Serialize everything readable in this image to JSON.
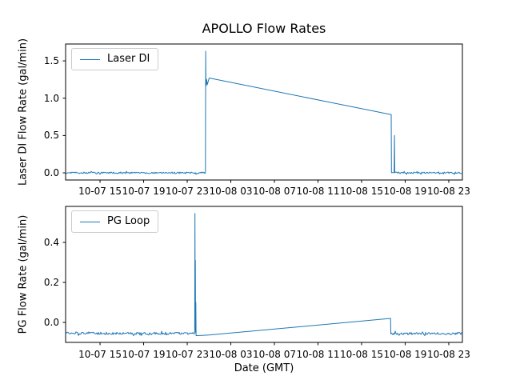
{
  "figure": {
    "title": "APOLLO Flow Rates",
    "xlabel": "Date (GMT)",
    "line_color": "#1f77b4",
    "background": "#ffffff"
  },
  "chart_data": [
    {
      "type": "line",
      "title": "APOLLO Flow Rates",
      "ylabel": "Laser DI Flow Rate (gal/min)",
      "ylim": [
        -0.096,
        1.726
      ],
      "yticks": [
        0.0,
        0.5,
        1.0,
        1.5
      ],
      "ytick_labels": [
        "0.0",
        "0.5",
        "1.0",
        "1.5"
      ],
      "x_units": "hours since 10-07 00:00 GMT",
      "xlim": [
        11.84,
        48.25
      ],
      "xticks": [
        15,
        19,
        23,
        27,
        31,
        35,
        39,
        43,
        47
      ],
      "xtick_labels": [
        "10-07 15",
        "10-07 19",
        "10-07 23",
        "10-08 03",
        "10-08 07",
        "10-08 11",
        "10-08 15",
        "10-08 19",
        "10-08 23"
      ],
      "grid": false,
      "legend": {
        "position": "upper left",
        "entries": [
          "Laser DI"
        ]
      },
      "series": [
        {
          "name": "Laser DI",
          "color": "#1f77b4",
          "segments": [
            {
              "type": "noise",
              "x0": 11.84,
              "x1": 24.64,
              "base": 0.0,
              "amp": 0.011
            },
            {
              "type": "points",
              "pts": [
                [
                  24.67,
                  0.004
                ],
                [
                  24.69,
                  1.63
                ],
                [
                  24.71,
                  1.28
                ],
                [
                  24.74,
                  1.17
                ],
                [
                  24.78,
                  1.25
                ],
                [
                  24.84,
                  1.18
                ],
                [
                  25.02,
                  1.27
                ],
                [
                  41.72,
                  0.78
                ],
                [
                  41.74,
                  0.004
                ],
                [
                  41.99,
                  0.004
                ],
                [
                  42.02,
                  0.5
                ],
                [
                  42.05,
                  0.004
                ]
              ]
            },
            {
              "type": "noise",
              "x0": 42.1,
              "x1": 48.25,
              "base": 0.0,
              "amp": 0.011
            }
          ]
        }
      ]
    },
    {
      "type": "line",
      "ylabel": "PG Flow Rate (gal/min)",
      "xlabel": "Date (GMT)",
      "ylim": [
        -0.1,
        0.58
      ],
      "yticks": [
        0.0,
        0.2,
        0.4
      ],
      "ytick_labels": [
        "0.0",
        "0.2",
        "0.4"
      ],
      "x_units": "hours since 10-07 00:00 GMT",
      "xlim": [
        11.84,
        48.25
      ],
      "xticks": [
        15,
        19,
        23,
        27,
        31,
        35,
        39,
        43,
        47
      ],
      "xtick_labels": [
        "10-07 15",
        "10-07 19",
        "10-07 23",
        "10-08 03",
        "10-08 07",
        "10-08 11",
        "10-08 15",
        "10-08 19",
        "10-08 23"
      ],
      "grid": false,
      "legend": {
        "position": "upper left",
        "entries": [
          "PG Loop"
        ]
      },
      "series": [
        {
          "name": "PG Loop",
          "color": "#1f77b4",
          "segments": [
            {
              "type": "noise",
              "x0": 11.84,
              "x1": 23.66,
              "base": -0.055,
              "amp": 0.006
            },
            {
              "type": "points",
              "pts": [
                [
                  23.69,
                  -0.055
                ],
                [
                  23.71,
                  0.545
                ],
                [
                  23.73,
                  -0.03
                ],
                [
                  23.75,
                  0.31
                ],
                [
                  23.77,
                  -0.05
                ],
                [
                  23.79,
                  0.1
                ],
                [
                  23.81,
                  -0.066
                ],
                [
                  25.0,
                  -0.063
                ],
                [
                  41.66,
                  0.02
                ],
                [
                  41.69,
                  -0.058
                ]
              ]
            },
            {
              "type": "noise",
              "x0": 41.72,
              "x1": 48.25,
              "base": -0.056,
              "amp": 0.006
            }
          ]
        }
      ]
    }
  ]
}
